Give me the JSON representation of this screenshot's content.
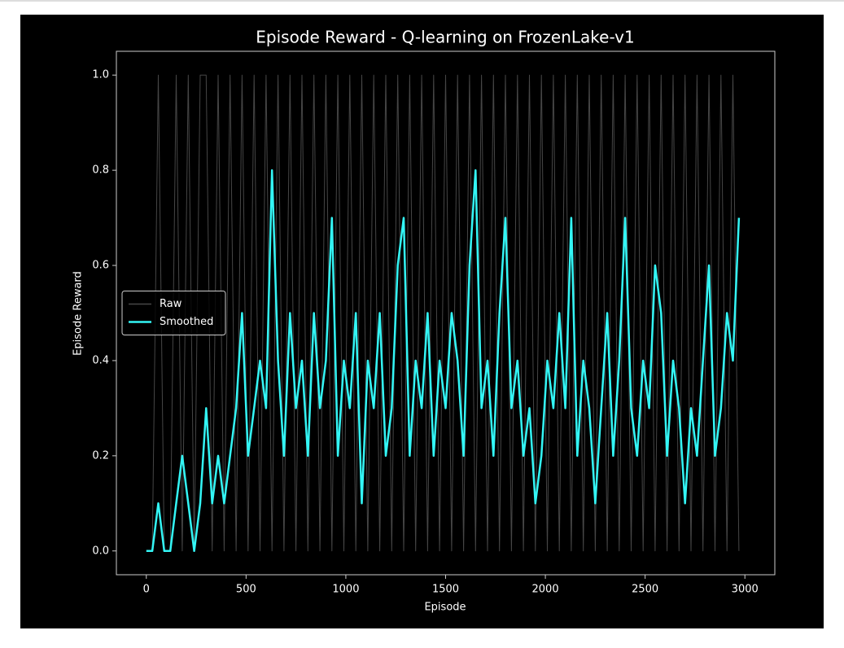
{
  "chart_data": {
    "type": "line",
    "title": "Episode Reward - Q-learning on FrozenLake-v1",
    "xlabel": "Episode",
    "ylabel": "Episode Reward",
    "x": [
      0,
      30,
      60,
      90,
      120,
      150,
      180,
      210,
      240,
      270,
      300,
      330,
      360,
      390,
      420,
      450,
      480,
      510,
      540,
      570,
      600,
      630,
      660,
      690,
      720,
      750,
      780,
      810,
      840,
      870,
      900,
      930,
      960,
      990,
      1020,
      1050,
      1080,
      1110,
      1140,
      1170,
      1200,
      1230,
      1260,
      1290,
      1320,
      1350,
      1380,
      1410,
      1440,
      1470,
      1500,
      1530,
      1560,
      1590,
      1620,
      1650,
      1680,
      1710,
      1740,
      1770,
      1800,
      1830,
      1860,
      1890,
      1920,
      1950,
      1980,
      2010,
      2040,
      2070,
      2100,
      2130,
      2160,
      2190,
      2220,
      2250,
      2280,
      2310,
      2340,
      2370,
      2400,
      2430,
      2460,
      2490,
      2520,
      2550,
      2580,
      2610,
      2640,
      2670,
      2700,
      2730,
      2760,
      2790,
      2820,
      2850,
      2880,
      2910,
      2940,
      2970
    ],
    "series": [
      {
        "name": "Raw",
        "color": "#808080",
        "values": [
          0,
          0,
          1,
          0,
          0,
          1,
          0,
          1,
          0,
          1,
          1,
          0,
          1,
          0,
          1,
          0,
          1,
          0,
          1,
          0,
          1,
          0,
          1,
          0,
          1,
          0,
          1,
          0,
          1,
          0,
          1,
          0,
          1,
          0,
          1,
          0,
          1,
          0,
          1,
          0,
          1,
          0,
          1,
          0,
          1,
          0,
          1,
          0,
          1,
          0,
          1,
          0,
          1,
          0,
          1,
          0,
          1,
          0,
          1,
          0,
          1,
          0,
          1,
          0,
          1,
          0,
          1,
          0,
          1,
          0,
          1,
          0,
          1,
          0,
          1,
          0,
          1,
          0,
          1,
          0,
          1,
          0,
          1,
          0,
          1,
          0,
          1,
          0,
          1,
          0,
          1,
          0,
          1,
          0,
          1,
          0,
          1,
          0,
          1,
          0
        ]
      },
      {
        "name": "Smoothed",
        "color": "#33f5f5",
        "values": [
          0,
          0,
          0.1,
          0,
          0,
          0.1,
          0.2,
          0.1,
          0,
          0.1,
          0.3,
          0.1,
          0.2,
          0.1,
          0.2,
          0.3,
          0.5,
          0.2,
          0.3,
          0.4,
          0.3,
          0.8,
          0.4,
          0.2,
          0.5,
          0.3,
          0.4,
          0.2,
          0.5,
          0.3,
          0.4,
          0.7,
          0.2,
          0.4,
          0.3,
          0.5,
          0.1,
          0.4,
          0.3,
          0.5,
          0.2,
          0.3,
          0.6,
          0.7,
          0.2,
          0.4,
          0.3,
          0.5,
          0.2,
          0.4,
          0.3,
          0.5,
          0.4,
          0.2,
          0.6,
          0.8,
          0.3,
          0.4,
          0.2,
          0.5,
          0.7,
          0.3,
          0.4,
          0.2,
          0.3,
          0.1,
          0.2,
          0.4,
          0.3,
          0.5,
          0.3,
          0.7,
          0.2,
          0.4,
          0.3,
          0.1,
          0.3,
          0.5,
          0.2,
          0.4,
          0.7,
          0.3,
          0.2,
          0.4,
          0.3,
          0.6,
          0.5,
          0.2,
          0.4,
          0.3,
          0.1,
          0.3,
          0.2,
          0.4,
          0.6,
          0.2,
          0.3,
          0.5,
          0.4,
          0.7
        ]
      }
    ],
    "xlim": [
      -150,
      3150
    ],
    "ylim": [
      -0.05,
      1.05
    ],
    "xticks": [
      0,
      500,
      1000,
      1500,
      2000,
      2500,
      3000
    ],
    "yticks": [
      {
        "value": 0,
        "label": "0.0"
      },
      0.2,
      0.4,
      0.6,
      0.8,
      {
        "value": 1,
        "label": "1.0"
      }
    ],
    "legend": "center left",
    "grid": false
  }
}
